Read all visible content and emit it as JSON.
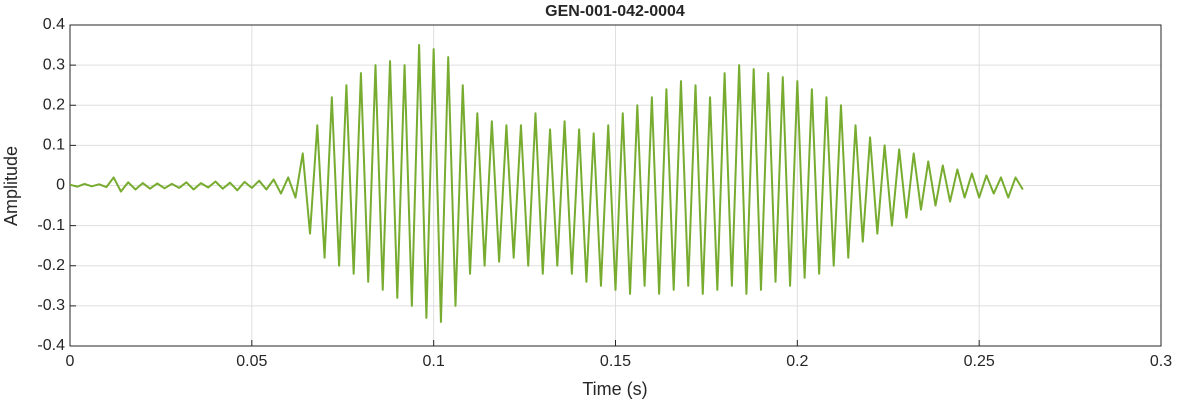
{
  "chart_data": {
    "type": "line",
    "title": "GEN-001-042-0004",
    "xlabel": "Time (s)",
    "ylabel": "Amplitude",
    "xlim": [
      0,
      0.3
    ],
    "ylim": [
      -0.4,
      0.4
    ],
    "xticks": [
      0,
      0.05,
      0.1,
      0.15,
      0.2,
      0.25,
      0.3
    ],
    "yticks": [
      -0.4,
      -0.3,
      -0.2,
      -0.1,
      0,
      0.1,
      0.2,
      0.3,
      0.4
    ],
    "grid": true,
    "x": [
      0,
      0.002,
      0.004,
      0.006,
      0.008,
      0.01,
      0.012,
      0.014,
      0.016,
      0.018,
      0.02,
      0.022,
      0.024,
      0.026,
      0.028,
      0.03,
      0.032,
      0.034,
      0.036,
      0.038,
      0.04,
      0.042,
      0.044,
      0.046,
      0.048,
      0.05,
      0.052,
      0.054,
      0.056,
      0.058,
      0.06,
      0.062,
      0.064,
      0.066,
      0.068,
      0.07,
      0.072,
      0.074,
      0.076,
      0.078,
      0.08,
      0.082,
      0.084,
      0.086,
      0.088,
      0.09,
      0.092,
      0.094,
      0.096,
      0.098,
      0.1,
      0.102,
      0.104,
      0.106,
      0.108,
      0.11,
      0.112,
      0.114,
      0.116,
      0.118,
      0.12,
      0.122,
      0.124,
      0.126,
      0.128,
      0.13,
      0.132,
      0.134,
      0.136,
      0.138,
      0.14,
      0.142,
      0.144,
      0.146,
      0.148,
      0.15,
      0.152,
      0.154,
      0.156,
      0.158,
      0.16,
      0.162,
      0.164,
      0.166,
      0.168,
      0.17,
      0.172,
      0.174,
      0.176,
      0.178,
      0.18,
      0.182,
      0.184,
      0.186,
      0.188,
      0.19,
      0.192,
      0.194,
      0.196,
      0.198,
      0.2,
      0.202,
      0.204,
      0.206,
      0.208,
      0.21,
      0.212,
      0.214,
      0.216,
      0.218,
      0.22,
      0.222,
      0.224,
      0.226,
      0.228,
      0.23,
      0.232,
      0.234,
      0.236,
      0.238,
      0.24,
      0.242,
      0.244,
      0.246,
      0.248,
      0.25,
      0.252,
      0.254,
      0.256,
      0.258,
      0.26,
      0.262
    ],
    "series": [
      {
        "name": "Amplitude",
        "color": "#77ac30",
        "values": [
          0.002,
          -0.003,
          0.004,
          -0.002,
          0.003,
          -0.004,
          0.02,
          -0.015,
          0.008,
          -0.01,
          0.006,
          -0.008,
          0.005,
          -0.007,
          0.004,
          -0.006,
          0.008,
          -0.01,
          0.006,
          -0.005,
          0.01,
          -0.008,
          0.007,
          -0.012,
          0.009,
          -0.006,
          0.012,
          -0.01,
          0.015,
          -0.02,
          0.02,
          -0.03,
          0.08,
          -0.12,
          0.15,
          -0.18,
          0.22,
          -0.2,
          0.25,
          -0.22,
          0.28,
          -0.24,
          0.3,
          -0.26,
          0.31,
          -0.28,
          0.3,
          -0.3,
          0.35,
          -0.33,
          0.34,
          -0.34,
          0.32,
          -0.3,
          0.25,
          -0.22,
          0.18,
          -0.2,
          0.16,
          -0.19,
          0.15,
          -0.18,
          0.15,
          -0.2,
          0.18,
          -0.22,
          0.14,
          -0.2,
          0.16,
          -0.22,
          0.14,
          -0.24,
          0.13,
          -0.25,
          0.15,
          -0.26,
          0.18,
          -0.27,
          0.2,
          -0.25,
          0.22,
          -0.27,
          0.24,
          -0.26,
          0.26,
          -0.25,
          0.25,
          -0.27,
          0.22,
          -0.26,
          0.28,
          -0.25,
          0.3,
          -0.27,
          0.29,
          -0.26,
          0.28,
          -0.24,
          0.27,
          -0.25,
          0.26,
          -0.23,
          0.24,
          -0.22,
          0.22,
          -0.2,
          0.2,
          -0.18,
          0.15,
          -0.14,
          0.12,
          -0.12,
          0.1,
          -0.1,
          0.09,
          -0.08,
          0.08,
          -0.06,
          0.06,
          -0.05,
          0.05,
          -0.04,
          0.04,
          -0.03,
          0.03,
          -0.03,
          0.025,
          -0.02,
          0.02,
          -0.03,
          0.02,
          -0.01
        ]
      }
    ]
  }
}
